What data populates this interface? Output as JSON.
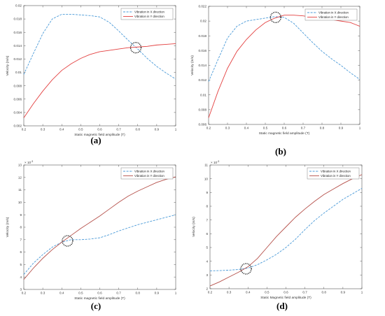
{
  "colors": {
    "x_series": "#4a9ad8",
    "y_series": "#e34040",
    "y_series_dark": "#b5504a"
  },
  "chart_data": [
    {
      "panel": "(a)",
      "type": "line",
      "xlabel": "Static magnetic field amplitude (T)",
      "ylabel": "Velocity (m/s)",
      "xlim": [
        0.2,
        1.0
      ],
      "ylim": [
        0.002,
        0.02
      ],
      "x_ticks": [
        "0.2",
        "0.3",
        "0.4",
        "0.5",
        "0.6",
        "0.7",
        "0.8",
        "0.9",
        "1"
      ],
      "y_ticks": [
        "0.002",
        "0.004",
        "0.006",
        "0.008",
        "0.01",
        "0.012",
        "0.014",
        "0.016",
        "0.018",
        "0.02"
      ],
      "y_exponent": "",
      "legend_position": "top-right",
      "series": [
        {
          "name": "Vibration in X direction",
          "style": "dashed",
          "x": [
            0.2,
            0.25,
            0.3,
            0.35,
            0.4,
            0.45,
            0.5,
            0.55,
            0.6,
            0.65,
            0.7,
            0.75,
            0.8,
            0.85,
            0.9,
            0.95,
            1.0
          ],
          "y": [
            0.0097,
            0.0128,
            0.0158,
            0.018,
            0.0187,
            0.0187,
            0.0186,
            0.0185,
            0.0183,
            0.0175,
            0.0162,
            0.0148,
            0.0135,
            0.0121,
            0.0109,
            0.0099,
            0.009
          ]
        },
        {
          "name": "Vibration in Y direction",
          "style": "solid",
          "x": [
            0.2,
            0.25,
            0.3,
            0.35,
            0.4,
            0.45,
            0.5,
            0.55,
            0.6,
            0.65,
            0.7,
            0.75,
            0.8,
            0.85,
            0.9,
            0.95,
            1.0
          ],
          "y": [
            0.0032,
            0.0053,
            0.0072,
            0.0089,
            0.0103,
            0.0113,
            0.0121,
            0.0127,
            0.0131,
            0.0133,
            0.0135,
            0.0137,
            0.0138,
            0.0139,
            0.0141,
            0.0142,
            0.0143
          ]
        }
      ],
      "marker_circle": {
        "x": 0.79,
        "y": 0.0137
      }
    },
    {
      "panel": "(b)",
      "type": "line",
      "xlabel": "Static magnetic field amplitude (T)",
      "ylabel": "Velocity (m/s)",
      "xlim": [
        0.2,
        1.0
      ],
      "ylim": [
        0.006,
        0.022
      ],
      "x_ticks": [
        "0.2",
        "0.3",
        "0.4",
        "0.5",
        "0.6",
        "0.7",
        "0.8",
        "0.9",
        "1"
      ],
      "y_ticks": [
        "0.006",
        "0.008",
        "0.01",
        "0.012",
        "0.014",
        "0.016",
        "0.018",
        "0.02",
        "0.022"
      ],
      "y_exponent": "",
      "legend_position": "top-right",
      "series": [
        {
          "name": "Vibration in X direction",
          "style": "dashed",
          "x": [
            0.2,
            0.25,
            0.3,
            0.35,
            0.4,
            0.45,
            0.5,
            0.55,
            0.6,
            0.65,
            0.7,
            0.75,
            0.8,
            0.85,
            0.9,
            0.95,
            1.0
          ],
          "y": [
            0.0118,
            0.0148,
            0.0177,
            0.0193,
            0.02,
            0.0202,
            0.0204,
            0.0206,
            0.0205,
            0.0197,
            0.0184,
            0.0171,
            0.0159,
            0.0149,
            0.014,
            0.013,
            0.0121
          ]
        },
        {
          "name": "Vibration in Y direction",
          "style": "solid",
          "x": [
            0.2,
            0.25,
            0.3,
            0.35,
            0.4,
            0.45,
            0.5,
            0.55,
            0.6,
            0.65,
            0.7,
            0.75,
            0.8,
            0.85,
            0.9,
            0.95,
            1.0
          ],
          "y": [
            0.0069,
            0.0105,
            0.0136,
            0.0159,
            0.0175,
            0.0188,
            0.0198,
            0.0204,
            0.0208,
            0.0208,
            0.0207,
            0.0205,
            0.0203,
            0.0202,
            0.02,
            0.0198,
            0.0193
          ]
        }
      ],
      "marker_circle": {
        "x": 0.555,
        "y": 0.0205
      }
    },
    {
      "panel": "(c)",
      "type": "line",
      "xlabel": "Static magnetic field amplitude (T)",
      "ylabel": "Velocity (m/s)",
      "xlim": [
        0.2,
        1.0
      ],
      "ylim": [
        3,
        13
      ],
      "x_ticks": [
        "0.2",
        "0.3",
        "0.4",
        "0.5",
        "0.6",
        "0.7",
        "0.8",
        "0.9",
        "1"
      ],
      "y_ticks": [
        "3",
        "4",
        "5",
        "6",
        "7",
        "8",
        "9",
        "10",
        "11",
        "12",
        "13"
      ],
      "y_exponent": "× 10",
      "y_exponent_power": "-3",
      "legend_position": "top-right",
      "series": [
        {
          "name": "Vibration in X direction",
          "style": "dashed",
          "x": [
            0.2,
            0.25,
            0.3,
            0.35,
            0.4,
            0.45,
            0.5,
            0.55,
            0.6,
            0.65,
            0.7,
            0.75,
            0.8,
            0.85,
            0.9,
            0.95,
            1.0
          ],
          "y": [
            4.2,
            5.1,
            5.8,
            6.4,
            6.8,
            7.0,
            7.0,
            7.05,
            7.15,
            7.4,
            7.7,
            7.95,
            8.2,
            8.4,
            8.6,
            8.8,
            9.0
          ]
        },
        {
          "name": "Vibration in Y direction",
          "style": "solid",
          "x": [
            0.2,
            0.25,
            0.3,
            0.35,
            0.4,
            0.45,
            0.5,
            0.55,
            0.6,
            0.65,
            0.7,
            0.75,
            0.8,
            0.85,
            0.9,
            0.95,
            1.0
          ],
          "y": [
            3.8,
            4.7,
            5.5,
            6.2,
            6.8,
            7.35,
            7.9,
            8.4,
            8.9,
            9.45,
            10.0,
            10.5,
            10.9,
            11.25,
            11.6,
            11.85,
            12.05
          ]
        }
      ],
      "marker_circle": {
        "x": 0.43,
        "y": 6.9
      }
    },
    {
      "panel": "(d)",
      "type": "line",
      "xlabel": "Static Magnetic field amplitude (T)",
      "ylabel": "Velocity (m/s)",
      "xlim": [
        0.2,
        1.0
      ],
      "ylim": [
        2,
        11
      ],
      "x_ticks": [
        "0.2",
        "0.3",
        "0.4",
        "0.5",
        "0.6",
        "0.7",
        "0.8",
        "0.9",
        "1"
      ],
      "y_ticks": [
        "2",
        "3",
        "4",
        "5",
        "6",
        "7",
        "8",
        "9",
        "10",
        "11"
      ],
      "y_exponent": "× 10",
      "y_exponent_power": "-3",
      "legend_position": "top-right",
      "series": [
        {
          "name": "Vibration in X direction",
          "style": "dashed",
          "x": [
            0.2,
            0.25,
            0.3,
            0.35,
            0.4,
            0.45,
            0.5,
            0.55,
            0.6,
            0.65,
            0.7,
            0.75,
            0.8,
            0.85,
            0.9,
            0.95,
            1.0
          ],
          "y": [
            3.3,
            3.32,
            3.35,
            3.4,
            3.5,
            3.75,
            4.1,
            4.5,
            5.0,
            5.6,
            6.3,
            6.95,
            7.5,
            8.0,
            8.5,
            8.9,
            9.3
          ]
        },
        {
          "name": "Vibration in Y direction",
          "style": "solid",
          "x": [
            0.2,
            0.25,
            0.3,
            0.35,
            0.4,
            0.45,
            0.5,
            0.55,
            0.6,
            0.65,
            0.7,
            0.75,
            0.8,
            0.85,
            0.9,
            0.95,
            1.0
          ],
          "y": [
            2.2,
            2.5,
            2.85,
            3.2,
            3.6,
            4.2,
            5.0,
            5.8,
            6.5,
            7.2,
            7.8,
            8.35,
            8.85,
            9.25,
            9.65,
            10.0,
            10.3
          ]
        }
      ],
      "marker_circle": {
        "x": 0.39,
        "y": 3.45
      }
    }
  ]
}
